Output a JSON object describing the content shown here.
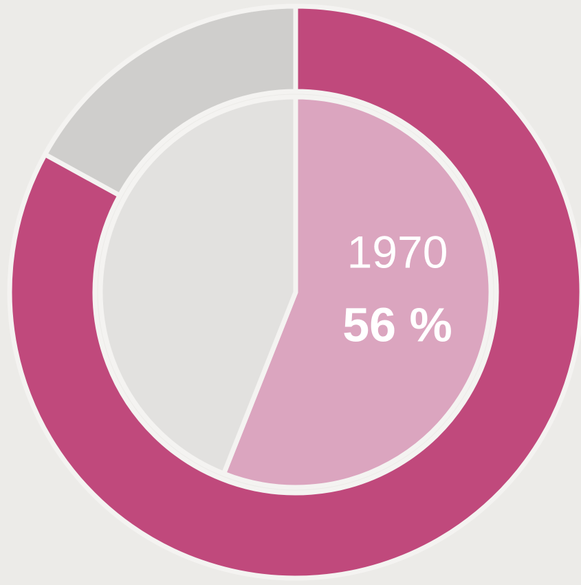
{
  "chart_data": [
    {
      "type": "donut",
      "values": [
        83,
        17
      ],
      "colors": [
        "#c0497c",
        "#cfcecc"
      ]
    },
    {
      "type": "pie",
      "name": "1970",
      "values": [
        56,
        44
      ],
      "value_labels": [
        "56 %",
        null
      ],
      "colors": [
        "#dba5bf",
        "#e2e1df"
      ]
    }
  ]
}
